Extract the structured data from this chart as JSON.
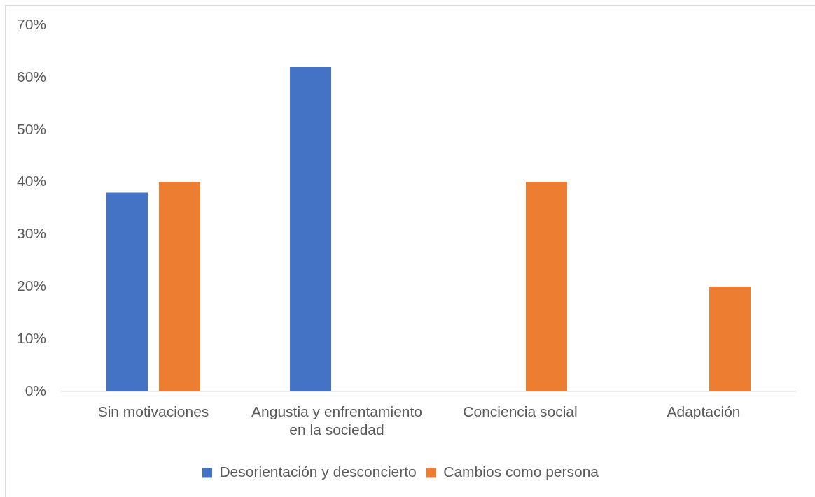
{
  "chart_data": {
    "type": "bar",
    "categories": [
      "Sin motivaciones",
      "Angustia y enfrentamiento en la sociedad",
      "Conciencia social",
      "Adaptación"
    ],
    "series": [
      {
        "name": "Desorientación y desconcierto",
        "color": "#4472c4",
        "values": [
          38,
          62,
          null,
          null
        ]
      },
      {
        "name": "Cambios como persona",
        "color": "#ed7d31",
        "values": [
          40,
          null,
          40,
          20
        ]
      }
    ],
    "ylim": [
      0,
      70
    ],
    "yticks": [
      {
        "value": 0,
        "label": "0%"
      },
      {
        "value": 10,
        "label": "10%"
      },
      {
        "value": 20,
        "label": "20%"
      },
      {
        "value": 30,
        "label": "30%"
      },
      {
        "value": 40,
        "label": "40%"
      },
      {
        "value": 50,
        "label": "50%"
      },
      {
        "value": 60,
        "label": "60%"
      },
      {
        "value": 70,
        "label": "70%"
      }
    ],
    "legend": "bottom"
  }
}
